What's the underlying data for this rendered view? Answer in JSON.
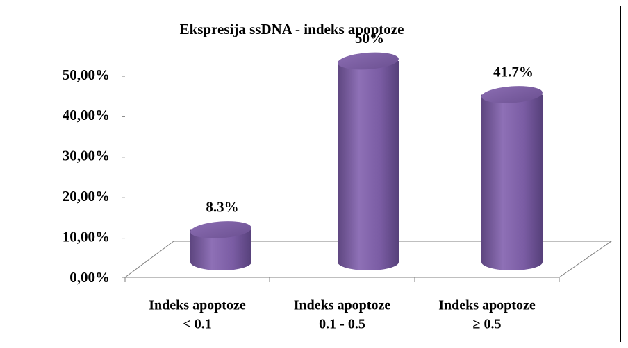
{
  "chart_data": {
    "type": "bar",
    "title": "Ekspresija ssDNA - indeks apoptoze",
    "categories": [
      [
        "Indeks apoptoze",
        "< 0.1"
      ],
      [
        "Indeks apoptoze",
        "0.1 - 0.5"
      ],
      [
        "Indeks apoptoze",
        "≥ 0.5"
      ]
    ],
    "values": [
      8.3,
      50,
      41.7
    ],
    "value_labels": [
      "8.3%",
      "50%",
      "41.7%"
    ],
    "color": "#8064a2",
    "ylim": [
      0,
      50
    ],
    "yticks": [
      {
        "value": 0,
        "label": "0,00%"
      },
      {
        "value": 10,
        "label": "10,00%"
      },
      {
        "value": 20,
        "label": "20,00%"
      },
      {
        "value": 30,
        "label": "30,00%"
      },
      {
        "value": 40,
        "label": "40,00%"
      },
      {
        "value": 50,
        "label": "50,00%"
      }
    ]
  }
}
